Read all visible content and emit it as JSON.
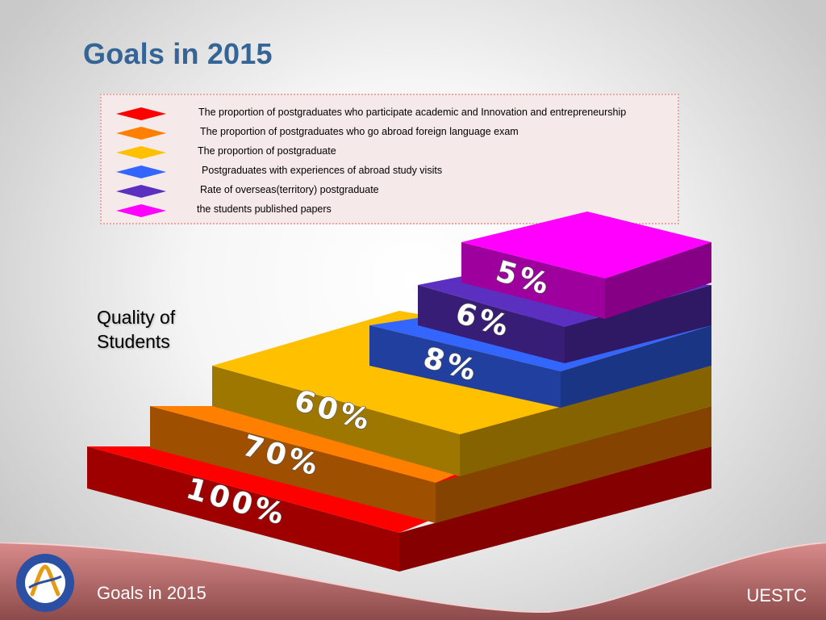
{
  "page": {
    "title": "Goals in 2015",
    "side_label": "Quality of Students",
    "side_label_lines": [
      "Quality of",
      "Students"
    ],
    "footer_title": "Goals in 2015",
    "footer_org": "UESTC"
  },
  "legend": [
    {
      "label": "The proportion of postgraduates who participate academic and Innovation and entrepreneurship",
      "color": "#ff0000"
    },
    {
      "label": "The proportion of postgraduates who go abroad foreign language exam",
      "color": "#ff8000"
    },
    {
      "label": "The proportion of postgraduate",
      "color": "#ffc000"
    },
    {
      "label": "Postgraduates with experiences of abroad study visits",
      "color": "#3366ff"
    },
    {
      "label": "Rate of overseas(territory) postgraduate",
      "color": "#5b2fc0"
    },
    {
      "label": "the students published papers",
      "color": "#ff00ff"
    }
  ],
  "chart_data": {
    "type": "bar",
    "style": "3d stepped pyramid",
    "categories": [
      "The proportion of postgraduates who participate academic and Innovation and entrepreneurship",
      "The proportion of postgraduates who go abroad foreign language exam",
      "The proportion of postgraduate",
      "Postgraduates with experiences of abroad study visits",
      "Rate of overseas(territory) postgraduate",
      "the students published papers"
    ],
    "values": [
      100,
      70,
      60,
      8,
      6,
      5
    ],
    "value_labels": [
      "100%",
      "70%",
      "60%",
      "8%",
      "6%",
      "5%"
    ],
    "colors": [
      "#ff0000",
      "#ff8000",
      "#ffc000",
      "#3366ff",
      "#5b2fc0",
      "#ff00ff"
    ],
    "legend_position": "top",
    "grid": false
  }
}
